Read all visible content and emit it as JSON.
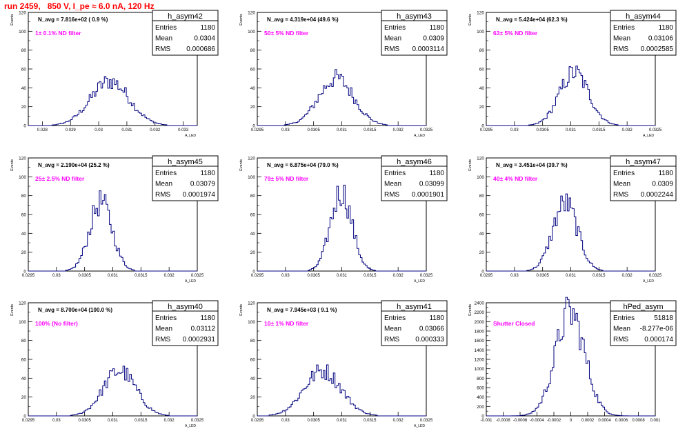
{
  "page_title": "run 2459,   850 V, I_pe ≈ 6.0 nA, 120 Hz",
  "colors": {
    "title": "#ff0000",
    "hist_line": "#000080",
    "filter_label": "#ff00ff",
    "frame": "#000000"
  },
  "stat_labels": {
    "entries": "Entries",
    "mean": "Mean",
    "rms": "RMS"
  },
  "chart_data": [
    {
      "type": "histogram",
      "name": "h_asym42",
      "annotation": "N_avg = 7.816e+02 ( 0.9 %)",
      "filter_label": "1± 0.1% ND filter",
      "stats": {
        "entries": "1180",
        "mean": "0.0304",
        "rms": "0.000686"
      },
      "ylabel": "Events",
      "xlabel": "A_LED",
      "xlim": [
        0.0275,
        0.0335
      ],
      "ylim": [
        0,
        120
      ],
      "xticks": [
        "0.028",
        "0.029",
        "0.03",
        "0.031",
        "0.032",
        "0.033"
      ],
      "yticks": [
        "0",
        "20",
        "40",
        "60",
        "80",
        "100",
        "120"
      ],
      "peak_x": 0.0304,
      "width": 0.00069,
      "peak_y": 47
    },
    {
      "type": "histogram",
      "name": "h_asym43",
      "annotation": "N_avg = 4.319e+04 (49.6 %)",
      "filter_label": "50± 5% ND filter",
      "stats": {
        "entries": "1180",
        "mean": "0.0309",
        "rms": "0.0003114"
      },
      "ylabel": "Events",
      "xlabel": "A_LED",
      "xlim": [
        0.0295,
        0.0325
      ],
      "ylim": [
        0,
        120
      ],
      "xticks": [
        "0.0295",
        "0.03",
        "0.0305",
        "0.031",
        "0.0315",
        "0.032",
        "0.0325"
      ],
      "yticks": [
        "0",
        "20",
        "40",
        "60",
        "80",
        "100",
        "120"
      ],
      "peak_x": 0.0309,
      "width": 0.00031,
      "peak_y": 50
    },
    {
      "type": "histogram",
      "name": "h_asym44",
      "annotation": "N_avg = 5.424e+04 (62.3 %)",
      "filter_label": "63± 5% ND filter",
      "stats": {
        "entries": "1180",
        "mean": "0.03106",
        "rms": "0.0002585"
      },
      "ylabel": "Events",
      "xlabel": "A_LED",
      "xlim": [
        0.0295,
        0.0325
      ],
      "ylim": [
        0,
        120
      ],
      "xticks": [
        "0.0295",
        "0.03",
        "0.0305",
        "0.031",
        "0.0315",
        "0.032",
        "0.0325"
      ],
      "yticks": [
        "0",
        "20",
        "40",
        "60",
        "80",
        "100",
        "120"
      ],
      "peak_x": 0.03106,
      "width": 0.00026,
      "peak_y": 56
    },
    {
      "type": "histogram",
      "name": "h_asym45",
      "annotation": "N_avg = 2.190e+04 (25.2 %)",
      "filter_label": "25± 2.5% ND filter",
      "stats": {
        "entries": "1180",
        "mean": "0.03079",
        "rms": "0.0001974"
      },
      "ylabel": "Events",
      "xlabel": "A_LED",
      "xlim": [
        0.0295,
        0.0325
      ],
      "ylim": [
        0,
        120
      ],
      "xticks": [
        "0.0295",
        "0.03",
        "0.0305",
        "0.031",
        "0.0315",
        "0.032",
        "0.0325"
      ],
      "yticks": [
        "0",
        "20",
        "40",
        "60",
        "80",
        "100",
        "120"
      ],
      "peak_x": 0.03079,
      "width": 0.0002,
      "peak_y": 73
    },
    {
      "type": "histogram",
      "name": "h_asym46",
      "annotation": "N_avg = 6.875e+04 (79.0 %)",
      "filter_label": "79± 5% ND filter",
      "stats": {
        "entries": "1180",
        "mean": "0.03099",
        "rms": "0.0001901"
      },
      "ylabel": "Events",
      "xlabel": "A_LED",
      "xlim": [
        0.0295,
        0.0325
      ],
      "ylim": [
        0,
        120
      ],
      "xticks": [
        "0.0295",
        "0.03",
        "0.0305",
        "0.031",
        "0.0315",
        "0.032",
        "0.0325"
      ],
      "yticks": [
        "0",
        "20",
        "40",
        "60",
        "80",
        "100",
        "120"
      ],
      "peak_x": 0.03099,
      "width": 0.00019,
      "peak_y": 84
    },
    {
      "type": "histogram",
      "name": "h_asym47",
      "annotation": "N_avg = 3.451e+04 (39.7 %)",
      "filter_label": "40± 4% ND filter",
      "stats": {
        "entries": "1180",
        "mean": "0.0309",
        "rms": "0.0002244"
      },
      "ylabel": "Events",
      "xlabel": "A_LED",
      "xlim": [
        0.0295,
        0.0325
      ],
      "ylim": [
        0,
        120
      ],
      "xticks": [
        "0.0295",
        "0.03",
        "0.0305",
        "0.031",
        "0.0315",
        "0.032",
        "0.0325"
      ],
      "yticks": [
        "0",
        "20",
        "40",
        "60",
        "80",
        "100",
        "120"
      ],
      "peak_x": 0.0309,
      "width": 0.00022,
      "peak_y": 72
    },
    {
      "type": "histogram",
      "name": "h_asym40",
      "annotation": "N_avg = 8.700e+04 (100.0 %)",
      "filter_label": "100% (No filter)",
      "stats": {
        "entries": "1180",
        "mean": "0.03112",
        "rms": "0.0002931"
      },
      "ylabel": "Events",
      "xlabel": "A_LED",
      "xlim": [
        0.0295,
        0.0325
      ],
      "ylim": [
        0,
        120
      ],
      "xticks": [
        "0.0295",
        "0.03",
        "0.0305",
        "0.031",
        "0.0315",
        "0.032",
        "0.0325"
      ],
      "yticks": [
        "0",
        "20",
        "40",
        "60",
        "80",
        "100",
        "120"
      ],
      "peak_x": 0.03112,
      "width": 0.00029,
      "peak_y": 48
    },
    {
      "type": "histogram",
      "name": "h_asym41",
      "annotation": "N_avg = 7.945e+03 ( 9.1 %)",
      "filter_label": "10± 1% ND filter",
      "stats": {
        "entries": "1180",
        "mean": "0.03066",
        "rms": "0.000333"
      },
      "ylabel": "Events",
      "xlabel": "A_LED",
      "xlim": [
        0.0295,
        0.0325
      ],
      "ylim": [
        0,
        120
      ],
      "xticks": [
        "0.0295",
        "0.03",
        "0.0305",
        "0.031",
        "0.0315",
        "0.032",
        "0.0325"
      ],
      "yticks": [
        "0",
        "20",
        "40",
        "60",
        "80",
        "100",
        "120"
      ],
      "peak_x": 0.03066,
      "width": 0.00033,
      "peak_y": 48
    },
    {
      "type": "histogram",
      "name": "hPed_asym",
      "annotation": "",
      "filter_label": "Shutter Closed",
      "stats": {
        "entries": "51818",
        "mean": "-8.277e-06",
        "rms": "0.000174"
      },
      "ylabel": "Events",
      "xlabel": "",
      "xlim": [
        -0.001,
        0.001
      ],
      "ylim": [
        0,
        2400
      ],
      "xticks": [
        "-0.001",
        "-0.0008",
        "-0.0006",
        "-0.0004",
        "-0.0002",
        "0",
        "0.0002",
        "0.0004",
        "0.0006",
        "0.0008",
        "0.001"
      ],
      "yticks": [
        "0",
        "200",
        "400",
        "600",
        "800",
        "1000",
        "1200",
        "1400",
        "1600",
        "1800",
        "2000",
        "2200",
        "2400"
      ],
      "peak_x": -8e-06,
      "width": 0.000174,
      "peak_y": 2190
    }
  ]
}
